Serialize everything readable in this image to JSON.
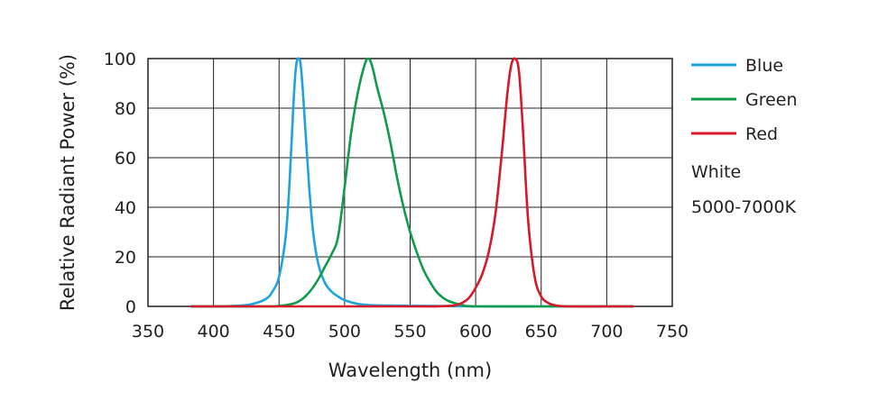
{
  "chart_data": {
    "type": "line",
    "title": "",
    "xlabel": "Wavelength (nm)",
    "ylabel": "Relative Radiant Power (%)",
    "xlim": [
      350,
      750
    ],
    "ylim": [
      0,
      100
    ],
    "x_ticks": [
      "350",
      "400",
      "450",
      "500",
      "550",
      "600",
      "650",
      "700",
      "750"
    ],
    "y_ticks": [
      "0",
      "20",
      "40",
      "60",
      "80",
      "100"
    ],
    "grid": true,
    "legend_position": "right",
    "series": [
      {
        "name": "Blue",
        "color": "#1fa3db",
        "x": [
          383,
          400,
          420,
          430,
          440,
          445,
          450,
          455,
          458,
          461,
          463,
          465,
          467,
          470,
          473,
          476,
          480,
          485,
          490,
          495,
          500,
          510,
          520,
          540,
          560,
          600,
          650,
          700,
          720
        ],
        "y": [
          0,
          0,
          0.3,
          1,
          3,
          6,
          12,
          28,
          50,
          82,
          97,
          100,
          95,
          72,
          48,
          30,
          17,
          9.5,
          6,
          4,
          2.5,
          1,
          0.5,
          0.3,
          0.2,
          0,
          0,
          0,
          0
        ]
      },
      {
        "name": "Green",
        "color": "#0f9a4c",
        "x": [
          383,
          440,
          450,
          460,
          465,
          470,
          475,
          480,
          485,
          490,
          495,
          500,
          505,
          510,
          515,
          518,
          521,
          525,
          530,
          535,
          540,
          545,
          550,
          555,
          560,
          565,
          570,
          575,
          580,
          590,
          600,
          650,
          700,
          720
        ],
        "y": [
          0,
          0,
          0.2,
          1,
          2,
          4,
          7,
          11,
          16,
          21,
          28,
          48,
          70,
          86,
          97,
          100,
          97,
          88,
          78,
          66,
          52,
          40,
          30,
          22,
          15,
          10,
          6,
          3.5,
          2,
          0.5,
          0,
          0,
          0,
          0
        ]
      },
      {
        "name": "Red",
        "color": "#d7182a",
        "x": [
          383,
          550,
          570,
          580,
          585,
          590,
          595,
          600,
          605,
          610,
          615,
          620,
          624,
          627,
          630,
          633,
          636,
          640,
          645,
          650,
          655,
          660,
          670,
          700,
          720
        ],
        "y": [
          0,
          0,
          0,
          0.2,
          0.5,
          1.5,
          3.5,
          7.5,
          13,
          22,
          37,
          62,
          85,
          97,
          100,
          95,
          72,
          35,
          12,
          4,
          1.5,
          0.5,
          0,
          0,
          0
        ]
      }
    ],
    "annotations": [
      "White",
      "5000-7000K"
    ]
  }
}
